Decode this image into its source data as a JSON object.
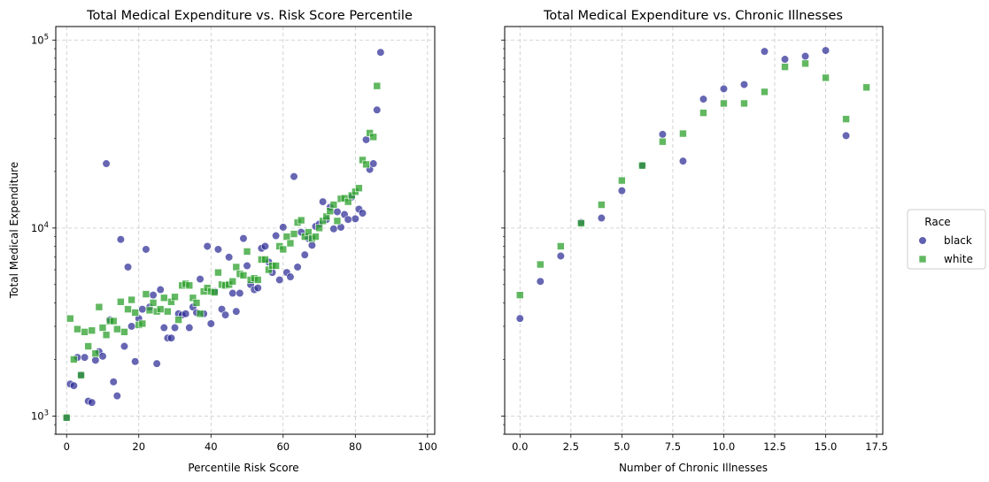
{
  "colors": {
    "black": "#2b2b95",
    "white": "#2ca02c",
    "grid": "#c8c8c8"
  },
  "legend": {
    "title": "Race",
    "placement": "right-center",
    "entries": [
      "black",
      "white"
    ]
  },
  "chart_data": [
    {
      "type": "scatter",
      "title": "Total Medical Expenditure vs. Risk Score Percentile",
      "xlabel": "Percentile Risk Score",
      "ylabel": "Total Medical Expenditure",
      "xlim": [
        -3,
        102
      ],
      "ylim": [
        800,
        118000
      ],
      "yscale": "log",
      "grid": true,
      "x_ticks": [
        0,
        20,
        40,
        60,
        80,
        100
      ],
      "y_ticks": [
        {
          "value": 1000,
          "base": "10",
          "exp": "3"
        },
        {
          "value": 10000,
          "base": "10",
          "exp": "4"
        },
        {
          "value": 100000,
          "base": "10",
          "exp": "5"
        }
      ],
      "series": [
        {
          "name": "black",
          "marker": "circle",
          "points": [
            [
              0,
              980
            ],
            [
              1,
              1480
            ],
            [
              2,
              1450
            ],
            [
              3,
              2050
            ],
            [
              4,
              1650
            ],
            [
              5,
              2050
            ],
            [
              6,
              1200
            ],
            [
              7,
              1180
            ],
            [
              8,
              1980
            ],
            [
              9,
              2200
            ],
            [
              10,
              2080
            ],
            [
              11,
              22000
            ],
            [
              12,
              3250
            ],
            [
              13,
              1520
            ],
            [
              14,
              1280
            ],
            [
              15,
              8700
            ],
            [
              16,
              2350
            ],
            [
              17,
              6200
            ],
            [
              18,
              3000
            ],
            [
              19,
              1950
            ],
            [
              20,
              3300
            ],
            [
              21,
              3700
            ],
            [
              22,
              7700
            ],
            [
              23,
              3800
            ],
            [
              24,
              4400
            ],
            [
              25,
              1900
            ],
            [
              26,
              4700
            ],
            [
              27,
              2950
            ],
            [
              28,
              2600
            ],
            [
              29,
              2600
            ],
            [
              30,
              2950
            ],
            [
              31,
              3500
            ],
            [
              32,
              3450
            ],
            [
              33,
              3500
            ],
            [
              34,
              2950
            ],
            [
              35,
              3800
            ],
            [
              36,
              3550
            ],
            [
              37,
              5350
            ],
            [
              38,
              3500
            ],
            [
              39,
              8000
            ],
            [
              40,
              3100
            ],
            [
              41,
              4600
            ],
            [
              42,
              7700
            ],
            [
              43,
              3700
            ],
            [
              44,
              3450
            ],
            [
              45,
              7000
            ],
            [
              46,
              4500
            ],
            [
              47,
              3600
            ],
            [
              48,
              4500
            ],
            [
              49,
              8800
            ],
            [
              50,
              6300
            ],
            [
              51,
              5000
            ],
            [
              52,
              4700
            ],
            [
              53,
              4800
            ],
            [
              54,
              7800
            ],
            [
              55,
              8000
            ],
            [
              56,
              6600
            ],
            [
              57,
              5800
            ],
            [
              58,
              9100
            ],
            [
              59,
              5300
            ],
            [
              60,
              10100
            ],
            [
              61,
              5800
            ],
            [
              62,
              5500
            ],
            [
              63,
              18800
            ],
            [
              64,
              6200
            ],
            [
              65,
              9500
            ],
            [
              66,
              7200
            ],
            [
              67,
              8800
            ],
            [
              68,
              8100
            ],
            [
              69,
              10200
            ],
            [
              70,
              10500
            ],
            [
              71,
              13800
            ],
            [
              72,
              11100
            ],
            [
              73,
              12900
            ],
            [
              74,
              9900
            ],
            [
              75,
              12200
            ],
            [
              76,
              10100
            ],
            [
              77,
              11800
            ],
            [
              78,
              11100
            ],
            [
              79,
              14600
            ],
            [
              80,
              11200
            ],
            [
              81,
              12600
            ],
            [
              82,
              12000
            ],
            [
              83,
              29500
            ],
            [
              84,
              20500
            ],
            [
              85,
              22000
            ],
            [
              86,
              42500
            ],
            [
              87,
              86000
            ]
          ]
        },
        {
          "name": "white",
          "marker": "square",
          "points": [
            [
              0,
              980
            ],
            [
              1,
              3300
            ],
            [
              2,
              2000
            ],
            [
              3,
              2900
            ],
            [
              4,
              1650
            ],
            [
              5,
              2800
            ],
            [
              6,
              2350
            ],
            [
              7,
              2850
            ],
            [
              8,
              2150
            ],
            [
              9,
              3800
            ],
            [
              10,
              2950
            ],
            [
              11,
              2700
            ],
            [
              12,
              3200
            ],
            [
              13,
              3200
            ],
            [
              14,
              2900
            ],
            [
              15,
              4050
            ],
            [
              16,
              2800
            ],
            [
              17,
              3700
            ],
            [
              18,
              4150
            ],
            [
              19,
              3550
            ],
            [
              20,
              3050
            ],
            [
              21,
              3100
            ],
            [
              22,
              4450
            ],
            [
              23,
              3650
            ],
            [
              24,
              4000
            ],
            [
              25,
              3600
            ],
            [
              26,
              3700
            ],
            [
              27,
              4250
            ],
            [
              28,
              3600
            ],
            [
              29,
              4050
            ],
            [
              30,
              4300
            ],
            [
              31,
              3250
            ],
            [
              32,
              4950
            ],
            [
              33,
              5050
            ],
            [
              34,
              4950
            ],
            [
              35,
              4250
            ],
            [
              36,
              4000
            ],
            [
              37,
              3500
            ],
            [
              38,
              4600
            ],
            [
              39,
              4800
            ],
            [
              40,
              4600
            ],
            [
              41,
              4550
            ],
            [
              42,
              5800
            ],
            [
              43,
              5000
            ],
            [
              44,
              4950
            ],
            [
              45,
              5000
            ],
            [
              46,
              5200
            ],
            [
              47,
              6200
            ],
            [
              48,
              5700
            ],
            [
              49,
              5600
            ],
            [
              50,
              7500
            ],
            [
              51,
              5300
            ],
            [
              52,
              5400
            ],
            [
              53,
              5300
            ],
            [
              54,
              6800
            ],
            [
              55,
              6800
            ],
            [
              56,
              6000
            ],
            [
              57,
              6300
            ],
            [
              58,
              6300
            ],
            [
              59,
              8000
            ],
            [
              60,
              7700
            ],
            [
              61,
              9000
            ],
            [
              62,
              8300
            ],
            [
              63,
              9300
            ],
            [
              64,
              10700
            ],
            [
              65,
              11000
            ],
            [
              66,
              9000
            ],
            [
              67,
              9500
            ],
            [
              68,
              8800
            ],
            [
              69,
              9000
            ],
            [
              70,
              10000
            ],
            [
              71,
              10900
            ],
            [
              72,
              11500
            ],
            [
              73,
              12300
            ],
            [
              74,
              13300
            ],
            [
              75,
              10900
            ],
            [
              76,
              14300
            ],
            [
              77,
              14400
            ],
            [
              78,
              13800
            ],
            [
              79,
              14900
            ],
            [
              80,
              15600
            ],
            [
              81,
              16300
            ],
            [
              82,
              23000
            ],
            [
              83,
              21800
            ],
            [
              84,
              32000
            ],
            [
              85,
              30500
            ],
            [
              86,
              57000
            ]
          ]
        }
      ]
    },
    {
      "type": "scatter",
      "title": "Total Medical Expenditure vs. Chronic Illnesses",
      "xlabel": "Number of Chronic Illnesses",
      "ylabel": "",
      "xlim": [
        -0.75,
        17.8
      ],
      "ylim": [
        800,
        118000
      ],
      "yscale": "log",
      "grid": true,
      "x_ticks": [
        0.0,
        2.5,
        5.0,
        7.5,
        10.0,
        12.5,
        15.0,
        17.5
      ],
      "series": [
        {
          "name": "black",
          "marker": "circle",
          "points": [
            [
              0,
              3300
            ],
            [
              1,
              5200
            ],
            [
              2,
              7100
            ],
            [
              3,
              10700
            ],
            [
              4,
              11300
            ],
            [
              5,
              15800
            ],
            [
              6,
              21500
            ],
            [
              7,
              31500
            ],
            [
              8,
              22700
            ],
            [
              9,
              48500
            ],
            [
              10,
              55000
            ],
            [
              11,
              58000
            ],
            [
              12,
              87000
            ],
            [
              13,
              79000
            ],
            [
              14,
              82000
            ],
            [
              15,
              88000
            ],
            [
              16,
              31000
            ]
          ]
        },
        {
          "name": "white",
          "marker": "square",
          "points": [
            [
              0,
              4400
            ],
            [
              1,
              6400
            ],
            [
              2,
              8000
            ],
            [
              3,
              10600
            ],
            [
              4,
              13300
            ],
            [
              5,
              17900
            ],
            [
              6,
              21500
            ],
            [
              7,
              28800
            ],
            [
              8,
              31800
            ],
            [
              9,
              41000
            ],
            [
              10,
              46000
            ],
            [
              11,
              46000
            ],
            [
              12,
              53000
            ],
            [
              13,
              72000
            ],
            [
              14,
              75000
            ],
            [
              15,
              63000
            ],
            [
              16,
              38000
            ],
            [
              17,
              56000
            ]
          ]
        }
      ]
    }
  ]
}
